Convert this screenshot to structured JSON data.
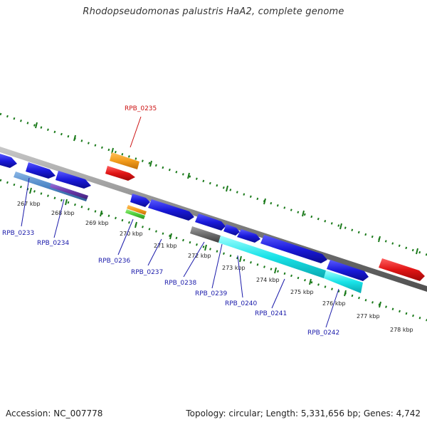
{
  "title": "Rhodopseudomonas palustris HaA2, complete genome",
  "footer": {
    "accession": "Accession: NC_007778",
    "summary": "Topology: circular; Length: 5,331,656 bp; Genes: 4,742"
  },
  "colors": {
    "backbone": "#808080",
    "tick": "#1a7a1a",
    "label_blue": "#1a1aaa",
    "label_red": "#cc1111",
    "cds_blue": "#1a1adb",
    "rna_red": "#e01515",
    "orange": "#f39c1c",
    "cyan": "#19e3e8",
    "steelblue": "#4d86c6",
    "green": "#4ccd3a",
    "gray": "#6d6d6d",
    "purple": "#6a38a8"
  },
  "kbp_labels": [
    "267 kbp",
    "268 kbp",
    "269 kbp",
    "270 kbp",
    "271 kbp",
    "272 kbp",
    "273 kbp",
    "274 kbp",
    "275 kbp",
    "276 kbp",
    "277 kbp",
    "278 kbp"
  ],
  "gene_labels": [
    {
      "text": "RPB_0233",
      "color": "blue"
    },
    {
      "text": "RPB_0234",
      "color": "blue"
    },
    {
      "text": "RPB_0235",
      "color": "red"
    },
    {
      "text": "RPB_0236",
      "color": "blue"
    },
    {
      "text": "RPB_0237",
      "color": "blue"
    },
    {
      "text": "RPB_0238",
      "color": "blue"
    },
    {
      "text": "RPB_0239",
      "color": "blue"
    },
    {
      "text": "RPB_0240",
      "color": "blue"
    },
    {
      "text": "RPB_0241",
      "color": "blue"
    },
    {
      "text": "RPB_0242",
      "color": "blue"
    }
  ]
}
